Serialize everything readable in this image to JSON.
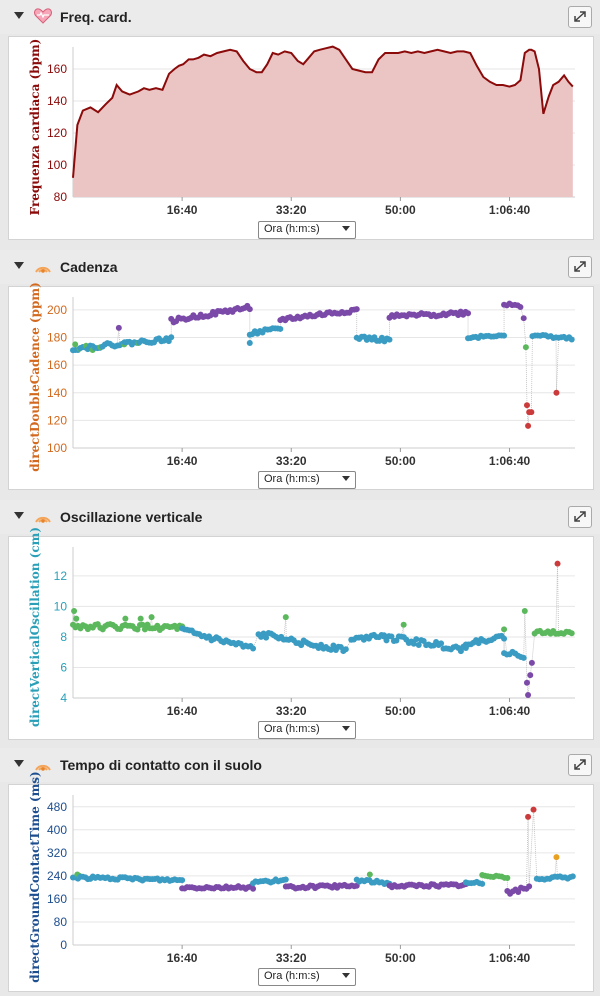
{
  "panels": [
    {
      "title": "Freq. card.",
      "icon": "heart-icon"
    },
    {
      "title": "Cadenza",
      "icon": "running-icon"
    },
    {
      "title": "Oscillazione verticale",
      "icon": "running-icon"
    },
    {
      "title": "Tempo di contatto con il suolo",
      "icon": "running-icon"
    }
  ],
  "x_select_label": "Ora (h:m:s)",
  "colors": {
    "hr_line": "#8b0a0a",
    "hr_fill": "#ebc4c4",
    "blue": "#3a9cc3",
    "green": "#5cb85c",
    "purple": "#7b4aa8",
    "red": "#cc3b3b",
    "orange": "#e8a020"
  },
  "chart_data": [
    {
      "type": "area",
      "ylabel": "Frequenza cardiaca (bpm)",
      "ylabel_color": "#8b0a0a",
      "ylim": [
        80,
        170
      ],
      "yticks": [
        80,
        100,
        120,
        140,
        160
      ],
      "xlim": [
        0,
        4600
      ],
      "xticks": [
        1000,
        2000,
        3000,
        4000
      ],
      "xtick_labels": [
        "16:40",
        "33:20",
        "50:00",
        "1:06:40"
      ],
      "x": [
        0,
        40,
        90,
        160,
        230,
        300,
        360,
        400,
        450,
        520,
        600,
        650,
        700,
        760,
        820,
        880,
        930,
        970,
        1010,
        1060,
        1100,
        1150,
        1200,
        1260,
        1320,
        1380,
        1440,
        1500,
        1560,
        1620,
        1680,
        1730,
        1780,
        1830,
        1880,
        1940,
        2000,
        2060,
        2110,
        2160,
        2210,
        2260,
        2320,
        2380,
        2440,
        2500,
        2560,
        2620,
        2680,
        2740,
        2800,
        2860,
        2920,
        2980,
        3040,
        3100,
        3160,
        3220,
        3280,
        3340,
        3400,
        3460,
        3520,
        3580,
        3640,
        3700,
        3760,
        3820,
        3880,
        3940,
        4000,
        4050,
        4100,
        4140,
        4180,
        4200,
        4230,
        4270,
        4310,
        4360,
        4400,
        4450,
        4500,
        4540,
        4580
      ],
      "y": [
        92,
        125,
        134,
        136,
        133,
        138,
        142,
        150,
        146,
        144,
        146,
        148,
        147,
        148,
        147,
        157,
        160,
        162,
        163,
        166,
        166,
        167,
        169,
        168,
        170,
        171,
        172,
        171,
        165,
        160,
        158,
        158,
        163,
        170,
        169,
        171,
        170,
        165,
        163,
        167,
        171,
        172,
        173,
        174,
        172,
        166,
        160,
        159,
        158,
        158,
        166,
        170,
        170,
        170,
        171,
        170,
        171,
        170,
        171,
        172,
        171,
        170,
        171,
        171,
        170,
        162,
        155,
        152,
        150,
        150,
        149,
        150,
        153,
        170,
        172,
        172,
        171,
        160,
        132,
        143,
        150,
        152,
        156,
        152,
        149
      ]
    },
    {
      "type": "scatter",
      "ylabel": "directDoubleCadence (ppm)",
      "ylabel_color": "#d2691e",
      "ylim": [
        100,
        205
      ],
      "yticks": [
        100,
        120,
        140,
        160,
        180,
        200
      ],
      "xlim": [
        0,
        4600
      ],
      "xticks": [
        1000,
        2000,
        3000,
        4000
      ],
      "xtick_labels": [
        "16:40",
        "33:20",
        "50:00",
        "1:06:40"
      ],
      "segments": [
        {
          "x": [
            0,
            900
          ],
          "y": [
            172,
            179
          ],
          "color": "blue",
          "jitter": 1.5
        },
        {
          "x": [
            900,
            1620
          ],
          "y": [
            192,
            202
          ],
          "color": "purple",
          "jitter": 1.5
        },
        {
          "x": [
            1620,
            1900
          ],
          "y": [
            183,
            186
          ],
          "color": "blue",
          "jitter": 1.5
        },
        {
          "x": [
            1900,
            2600
          ],
          "y": [
            193,
            200
          ],
          "color": "purple",
          "jitter": 1.5
        },
        {
          "x": [
            2600,
            2900
          ],
          "y": [
            180,
            178
          ],
          "color": "blue",
          "jitter": 1.5
        },
        {
          "x": [
            2900,
            3620
          ],
          "y": [
            195,
            198
          ],
          "color": "purple",
          "jitter": 1.5
        },
        {
          "x": [
            3620,
            3950
          ],
          "y": [
            180,
            182
          ],
          "color": "blue",
          "jitter": 1
        },
        {
          "x": [
            3950,
            4100
          ],
          "y": [
            204,
            202
          ],
          "color": "purple",
          "jitter": 1.5
        },
        {
          "x": [
            4210,
            4570
          ],
          "y": [
            182,
            179
          ],
          "color": "blue",
          "jitter": 1
        }
      ],
      "extra_points": [
        {
          "x": 20,
          "y": 175,
          "color": "green"
        },
        {
          "x": 60,
          "y": 172,
          "color": "green"
        },
        {
          "x": 120,
          "y": 174,
          "color": "green"
        },
        {
          "x": 180,
          "y": 171,
          "color": "green"
        },
        {
          "x": 250,
          "y": 173,
          "color": "green"
        },
        {
          "x": 420,
          "y": 187,
          "color": "purple"
        },
        {
          "x": 470,
          "y": 175,
          "color": "green"
        },
        {
          "x": 600,
          "y": 176,
          "color": "green"
        },
        {
          "x": 1620,
          "y": 176,
          "color": "blue"
        },
        {
          "x": 4130,
          "y": 194,
          "color": "purple"
        },
        {
          "x": 4150,
          "y": 173,
          "color": "green"
        },
        {
          "x": 4160,
          "y": 131,
          "color": "red"
        },
        {
          "x": 4170,
          "y": 116,
          "color": "red"
        },
        {
          "x": 4180,
          "y": 126,
          "color": "red"
        },
        {
          "x": 4200,
          "y": 126,
          "color": "red"
        },
        {
          "x": 4430,
          "y": 140,
          "color": "red"
        }
      ]
    },
    {
      "type": "scatter",
      "ylabel": "directVerticalOscillation (cm)",
      "ylabel_color": "#29a0b8",
      "ylim": [
        4,
        13.5
      ],
      "yticks": [
        4,
        6,
        8,
        10,
        12
      ],
      "xlim": [
        0,
        4600
      ],
      "xticks": [
        1000,
        2000,
        3000,
        4000
      ],
      "xtick_labels": [
        "16:40",
        "33:20",
        "50:00",
        "1:06:40"
      ],
      "segments": [
        {
          "x": [
            0,
            1000
          ],
          "y": [
            8.7,
            8.6
          ],
          "color": "green",
          "jitter": 0.18
        },
        {
          "x": [
            1000,
            1650
          ],
          "y": [
            8.4,
            7.2
          ],
          "color": "blue",
          "jitter": 0.2
        },
        {
          "x": [
            1700,
            2000
          ],
          "y": [
            8.1,
            8.0
          ],
          "color": "blue",
          "jitter": 0.2
        },
        {
          "x": [
            2000,
            2500
          ],
          "y": [
            7.7,
            7.2
          ],
          "color": "blue",
          "jitter": 0.2
        },
        {
          "x": [
            2550,
            2850
          ],
          "y": [
            7.8,
            8.2
          ],
          "color": "blue",
          "jitter": 0.15
        },
        {
          "x": [
            2850,
            3600
          ],
          "y": [
            8.0,
            7.2
          ],
          "color": "blue",
          "jitter": 0.2
        },
        {
          "x": [
            3600,
            3950
          ],
          "y": [
            7.6,
            8.0
          ],
          "color": "blue",
          "jitter": 0.15
        },
        {
          "x": [
            3950,
            4130
          ],
          "y": [
            6.9,
            6.8
          ],
          "color": "blue",
          "jitter": 0.2
        },
        {
          "x": [
            4230,
            4570
          ],
          "y": [
            8.3,
            8.3
          ],
          "color": "green",
          "jitter": 0.1
        }
      ],
      "extra_points": [
        {
          "x": 10,
          "y": 9.7,
          "color": "green"
        },
        {
          "x": 30,
          "y": 9.2,
          "color": "green"
        },
        {
          "x": 480,
          "y": 9.2,
          "color": "green"
        },
        {
          "x": 620,
          "y": 9.2,
          "color": "green"
        },
        {
          "x": 720,
          "y": 9.3,
          "color": "green"
        },
        {
          "x": 1950,
          "y": 9.3,
          "color": "green"
        },
        {
          "x": 3030,
          "y": 8.8,
          "color": "green"
        },
        {
          "x": 3950,
          "y": 8.5,
          "color": "green"
        },
        {
          "x": 4140,
          "y": 9.7,
          "color": "green"
        },
        {
          "x": 4160,
          "y": 5.0,
          "color": "purple"
        },
        {
          "x": 4170,
          "y": 4.2,
          "color": "purple"
        },
        {
          "x": 4190,
          "y": 5.5,
          "color": "purple"
        },
        {
          "x": 4205,
          "y": 6.3,
          "color": "purple"
        },
        {
          "x": 4440,
          "y": 12.8,
          "color": "red"
        }
      ]
    },
    {
      "type": "scatter",
      "ylabel": "directGroundContactTime (ms)",
      "ylabel_color": "#1d4e8f",
      "ylim": [
        0,
        500
      ],
      "yticks": [
        0,
        80,
        160,
        240,
        320,
        400,
        480
      ],
      "xlim": [
        0,
        4600
      ],
      "xticks": [
        1000,
        2000,
        3000,
        4000
      ],
      "xtick_labels": [
        "16:40",
        "33:20",
        "50:00",
        "1:06:40"
      ],
      "segments": [
        {
          "x": [
            0,
            1000
          ],
          "y": [
            235,
            225
          ],
          "color": "blue",
          "jitter": 5
        },
        {
          "x": [
            1000,
            1650
          ],
          "y": [
            200,
            200
          ],
          "color": "purple",
          "jitter": 5
        },
        {
          "x": [
            1650,
            1950
          ],
          "y": [
            218,
            225
          ],
          "color": "blue",
          "jitter": 5
        },
        {
          "x": [
            1950,
            2600
          ],
          "y": [
            200,
            205
          ],
          "color": "purple",
          "jitter": 5
        },
        {
          "x": [
            2600,
            2900
          ],
          "y": [
            225,
            215
          ],
          "color": "blue",
          "jitter": 5
        },
        {
          "x": [
            2900,
            3600
          ],
          "y": [
            205,
            208
          ],
          "color": "purple",
          "jitter": 5
        },
        {
          "x": [
            3600,
            3750
          ],
          "y": [
            215,
            215
          ],
          "color": "blue",
          "jitter": 5
        },
        {
          "x": [
            3750,
            3980
          ],
          "y": [
            245,
            235
          ],
          "color": "green",
          "jitter": 5
        },
        {
          "x": [
            3980,
            4180
          ],
          "y": [
            180,
            200
          ],
          "color": "purple",
          "jitter": 8
        },
        {
          "x": [
            4250,
            4580
          ],
          "y": [
            230,
            235
          ],
          "color": "blue",
          "jitter": 5
        }
      ],
      "extra_points": [
        {
          "x": 40,
          "y": 245,
          "color": "green"
        },
        {
          "x": 60,
          "y": 240,
          "color": "green"
        },
        {
          "x": 2720,
          "y": 245,
          "color": "green"
        },
        {
          "x": 4430,
          "y": 305,
          "color": "orange"
        },
        {
          "x": 4170,
          "y": 445,
          "color": "red"
        },
        {
          "x": 4220,
          "y": 470,
          "color": "red"
        }
      ]
    }
  ]
}
